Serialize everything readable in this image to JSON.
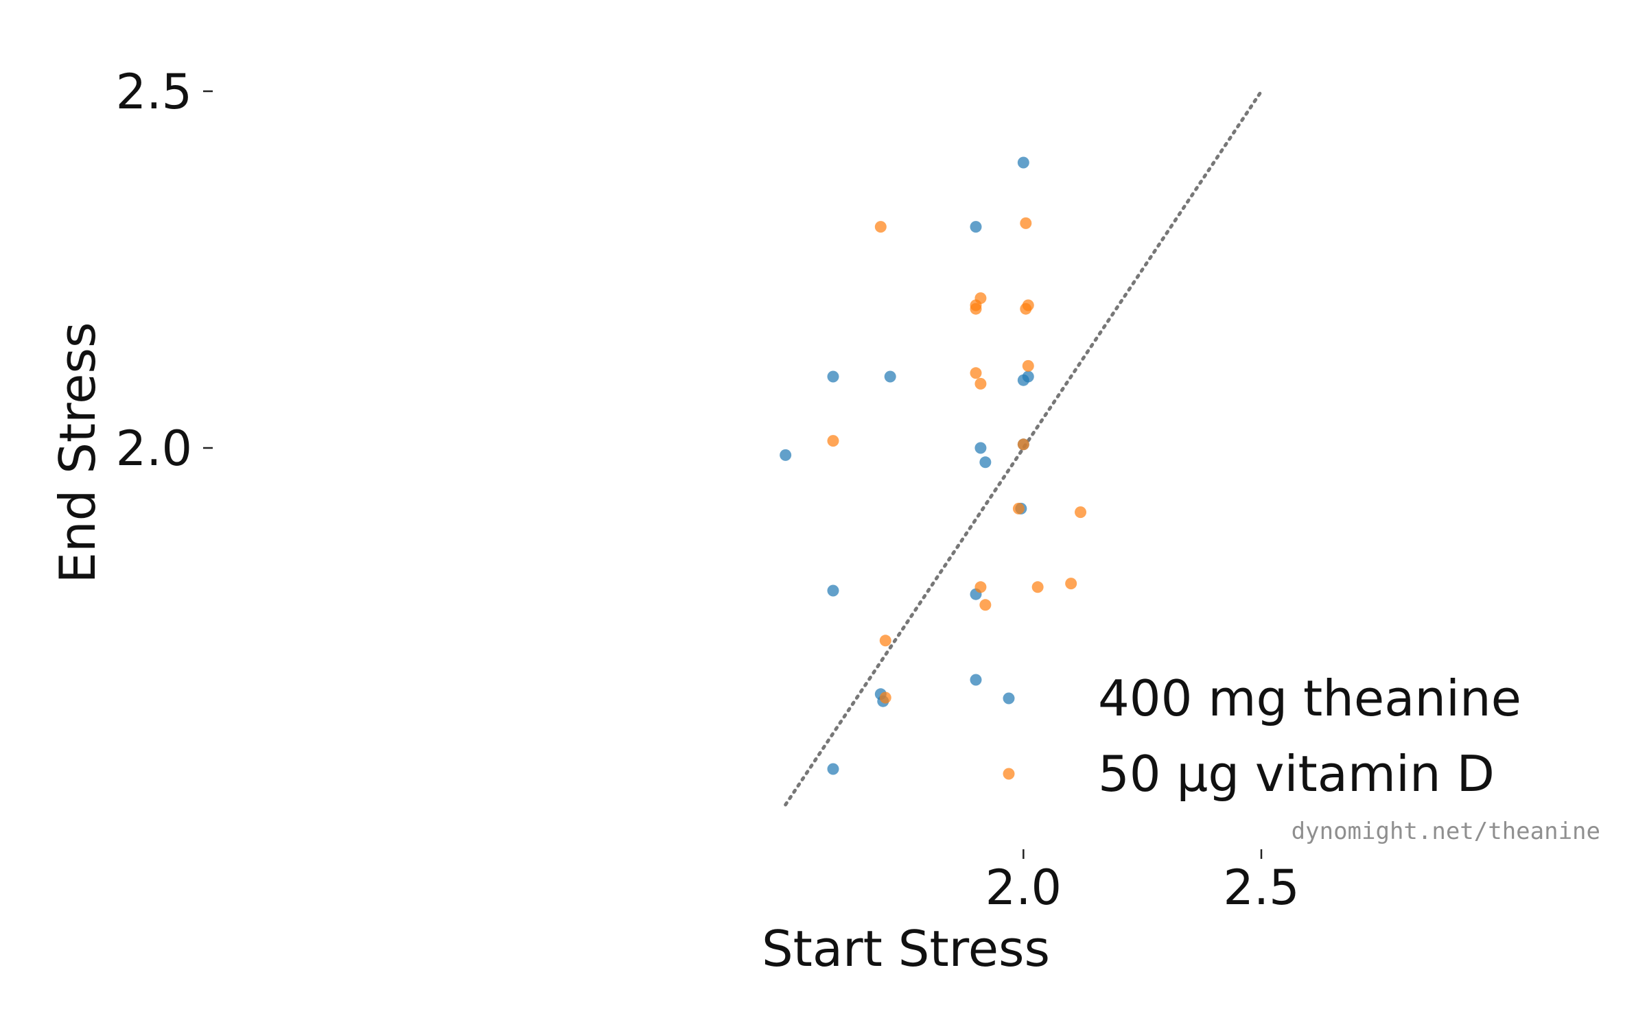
{
  "chart_data": {
    "type": "scatter",
    "xlabel": "Start Stress",
    "ylabel": "End Stress",
    "xlim": [
      1.0,
      2.5
    ],
    "ylim": [
      1.5,
      2.5
    ],
    "xticks": [
      2.0,
      2.5
    ],
    "yticks": [
      2.0,
      2.5
    ],
    "xtick_labels": [
      "2.0",
      "2.5"
    ],
    "ytick_labels": [
      "2.0",
      "2.5"
    ],
    "grid": false,
    "legend_position": "lower-right",
    "reference_line": {
      "style": "dotted",
      "color": "#777777",
      "from": [
        1.5,
        1.5
      ],
      "to": [
        2.5,
        2.5
      ]
    },
    "series": [
      {
        "name": "400 mg theanine",
        "color": "#1f77b4",
        "points": [
          [
            2.0,
            2.4
          ],
          [
            1.9,
            2.31
          ],
          [
            1.6,
            2.1
          ],
          [
            1.72,
            2.1
          ],
          [
            2.01,
            2.1
          ],
          [
            2.0,
            2.095
          ],
          [
            1.5,
            1.99
          ],
          [
            1.91,
            2.0
          ],
          [
            1.92,
            1.98
          ],
          [
            2.0,
            2.005
          ],
          [
            1.995,
            1.915
          ],
          [
            1.6,
            1.8
          ],
          [
            1.9,
            1.795
          ],
          [
            1.9,
            1.675
          ],
          [
            1.7,
            1.655
          ],
          [
            1.705,
            1.645
          ],
          [
            1.6,
            1.55
          ]
        ]
      },
      {
        "name": "50 µg vitamin D",
        "color": "#ff7f0e",
        "points": [
          [
            1.7,
            2.31
          ],
          [
            2.005,
            2.315
          ],
          [
            1.9,
            2.2
          ],
          [
            1.91,
            2.21
          ],
          [
            1.9,
            2.195
          ],
          [
            2.005,
            2.195
          ],
          [
            2.01,
            2.2
          ],
          [
            2.01,
            2.115
          ],
          [
            1.9,
            2.105
          ],
          [
            1.91,
            2.09
          ],
          [
            1.6,
            2.01
          ],
          [
            2.0,
            2.005
          ],
          [
            1.99,
            1.915
          ],
          [
            2.12,
            1.91
          ],
          [
            1.91,
            1.805
          ],
          [
            1.92,
            1.78
          ],
          [
            2.03,
            1.805
          ],
          [
            2.1,
            1.81
          ],
          [
            1.71,
            1.73
          ],
          [
            1.71,
            1.65
          ]
        ]
      }
    ],
    "watermark": "dynomight.net/theanine"
  }
}
